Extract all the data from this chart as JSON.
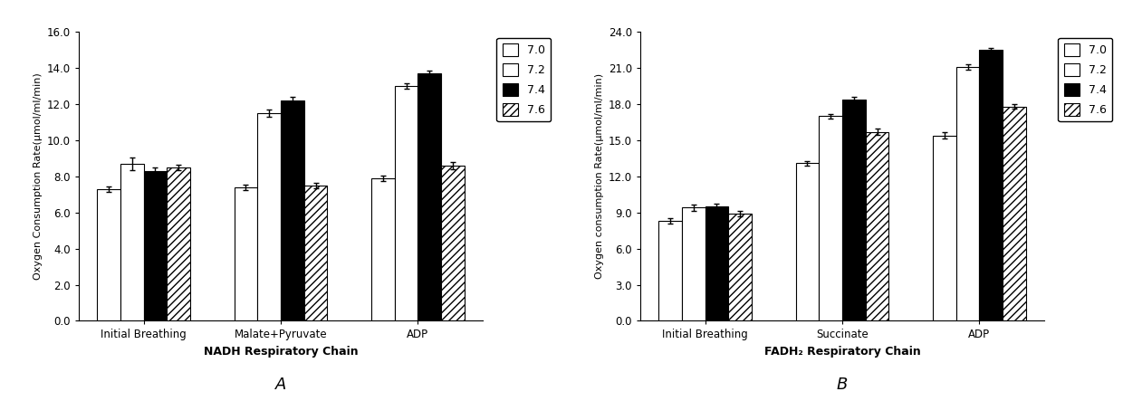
{
  "chart_A": {
    "xlabel": "NADH Respiratory Chain",
    "ylabel": "Oxygen Consumption Rate(μmol/ml/min)",
    "categories": [
      "Initial Breathing",
      "Malate+Pyruvate",
      "ADP"
    ],
    "series": {
      "7.0": [
        7.3,
        7.4,
        7.9
      ],
      "7.2": [
        8.7,
        11.5,
        13.0
      ],
      "7.4": [
        8.3,
        12.2,
        13.7
      ],
      "7.6": [
        8.5,
        7.5,
        8.6
      ]
    },
    "errors": {
      "7.0": [
        0.15,
        0.15,
        0.15
      ],
      "7.2": [
        0.35,
        0.2,
        0.15
      ],
      "7.4": [
        0.2,
        0.2,
        0.15
      ],
      "7.6": [
        0.15,
        0.15,
        0.2
      ]
    },
    "ylim": [
      0,
      16.0
    ],
    "yticks": [
      0.0,
      2.0,
      4.0,
      6.0,
      8.0,
      10.0,
      12.0,
      14.0,
      16.0
    ],
    "label": "A"
  },
  "chart_B": {
    "xlabel": "FADH₂ Respiratory Chain",
    "ylabel": "Oxygen consumption Rate(μmol/ml/min)",
    "categories": [
      "Initial Breathing",
      "Succinate",
      "ADP"
    ],
    "series": {
      "7.0": [
        8.3,
        13.1,
        15.4
      ],
      "7.2": [
        9.4,
        17.0,
        21.1
      ],
      "7.4": [
        9.5,
        18.4,
        22.5
      ],
      "7.6": [
        8.9,
        15.7,
        17.8
      ]
    },
    "errors": {
      "7.0": [
        0.2,
        0.2,
        0.25
      ],
      "7.2": [
        0.25,
        0.2,
        0.2
      ],
      "7.4": [
        0.2,
        0.25,
        0.2
      ],
      "7.6": [
        0.2,
        0.25,
        0.2
      ]
    },
    "ylim": [
      0,
      24.0
    ],
    "yticks": [
      0.0,
      3.0,
      6.0,
      9.0,
      12.0,
      15.0,
      18.0,
      21.0,
      24.0
    ],
    "label": "B"
  },
  "legend_labels": [
    "7.0",
    "7.2",
    "7.4",
    "7.6"
  ],
  "bar_width": 0.17,
  "bar_styles": [
    {
      "facecolor": "white",
      "hatch": null,
      "edgecolor": "black"
    },
    {
      "facecolor": "white",
      "hatch": null,
      "edgecolor": "black"
    },
    {
      "facecolor": "black",
      "hatch": null,
      "edgecolor": "black"
    },
    {
      "facecolor": "white",
      "hatch": "////",
      "edgecolor": "black"
    }
  ]
}
